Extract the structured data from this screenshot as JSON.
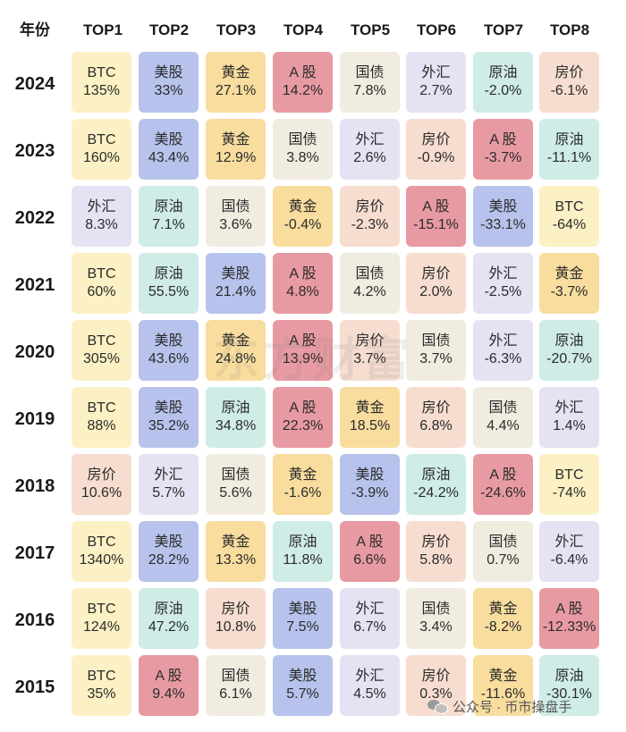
{
  "header": [
    "年份",
    "TOP1",
    "TOP2",
    "TOP3",
    "TOP4",
    "TOP5",
    "TOP6",
    "TOP7",
    "TOP8"
  ],
  "rows": [
    {
      "year": "2024",
      "cells": [
        {
          "name": "BTC",
          "value": "135%",
          "cat": "btc"
        },
        {
          "name": "美股",
          "value": "33%",
          "cat": "us"
        },
        {
          "name": "黄金",
          "value": "27.1%",
          "cat": "gold"
        },
        {
          "name": "A 股",
          "value": "14.2%",
          "cat": "a"
        },
        {
          "name": "国债",
          "value": "7.8%",
          "cat": "bond"
        },
        {
          "name": "外汇",
          "value": "2.7%",
          "cat": "fx"
        },
        {
          "name": "原油",
          "value": "-2.0%",
          "cat": "oil"
        },
        {
          "name": "房价",
          "value": "-6.1%",
          "cat": "house"
        }
      ]
    },
    {
      "year": "2023",
      "cells": [
        {
          "name": "BTC",
          "value": "160%",
          "cat": "btc"
        },
        {
          "name": "美股",
          "value": "43.4%",
          "cat": "us"
        },
        {
          "name": "黄金",
          "value": "12.9%",
          "cat": "gold"
        },
        {
          "name": "国债",
          "value": "3.8%",
          "cat": "bond"
        },
        {
          "name": "外汇",
          "value": "2.6%",
          "cat": "fx"
        },
        {
          "name": "房价",
          "value": "-0.9%",
          "cat": "house"
        },
        {
          "name": "A 股",
          "value": "-3.7%",
          "cat": "a"
        },
        {
          "name": "原油",
          "value": "-11.1%",
          "cat": "oil"
        }
      ]
    },
    {
      "year": "2022",
      "cells": [
        {
          "name": "外汇",
          "value": "8.3%",
          "cat": "fx"
        },
        {
          "name": "原油",
          "value": "7.1%",
          "cat": "oil"
        },
        {
          "name": "国债",
          "value": "3.6%",
          "cat": "bond"
        },
        {
          "name": "黄金",
          "value": "-0.4%",
          "cat": "gold"
        },
        {
          "name": "房价",
          "value": "-2.3%",
          "cat": "house"
        },
        {
          "name": "A 股",
          "value": "-15.1%",
          "cat": "a"
        },
        {
          "name": "美股",
          "value": "-33.1%",
          "cat": "us"
        },
        {
          "name": "BTC",
          "value": "-64%",
          "cat": "btc"
        }
      ]
    },
    {
      "year": "2021",
      "cells": [
        {
          "name": "BTC",
          "value": "60%",
          "cat": "btc"
        },
        {
          "name": "原油",
          "value": "55.5%",
          "cat": "oil"
        },
        {
          "name": "美股",
          "value": "21.4%",
          "cat": "us"
        },
        {
          "name": "A 股",
          "value": "4.8%",
          "cat": "a"
        },
        {
          "name": "国债",
          "value": "4.2%",
          "cat": "bond"
        },
        {
          "name": "房价",
          "value": "2.0%",
          "cat": "house"
        },
        {
          "name": "外汇",
          "value": "-2.5%",
          "cat": "fx"
        },
        {
          "name": "黄金",
          "value": "-3.7%",
          "cat": "gold"
        }
      ]
    },
    {
      "year": "2020",
      "cells": [
        {
          "name": "BTC",
          "value": "305%",
          "cat": "btc"
        },
        {
          "name": "美股",
          "value": "43.6%",
          "cat": "us"
        },
        {
          "name": "黄金",
          "value": "24.8%",
          "cat": "gold"
        },
        {
          "name": "A 股",
          "value": "13.9%",
          "cat": "a"
        },
        {
          "name": "房价",
          "value": "3.7%",
          "cat": "house"
        },
        {
          "name": "国债",
          "value": "3.7%",
          "cat": "bond"
        },
        {
          "name": "外汇",
          "value": "-6.3%",
          "cat": "fx"
        },
        {
          "name": "原油",
          "value": "-20.7%",
          "cat": "oil"
        }
      ]
    },
    {
      "year": "2019",
      "cells": [
        {
          "name": "BTC",
          "value": "88%",
          "cat": "btc"
        },
        {
          "name": "美股",
          "value": "35.2%",
          "cat": "us"
        },
        {
          "name": "原油",
          "value": "34.8%",
          "cat": "oil"
        },
        {
          "name": "A 股",
          "value": "22.3%",
          "cat": "a"
        },
        {
          "name": "黄金",
          "value": "18.5%",
          "cat": "gold"
        },
        {
          "name": "房价",
          "value": "6.8%",
          "cat": "house"
        },
        {
          "name": "国债",
          "value": "4.4%",
          "cat": "bond"
        },
        {
          "name": "外汇",
          "value": "1.4%",
          "cat": "fx"
        }
      ]
    },
    {
      "year": "2018",
      "cells": [
        {
          "name": "房价",
          "value": "10.6%",
          "cat": "house"
        },
        {
          "name": "外汇",
          "value": "5.7%",
          "cat": "fx"
        },
        {
          "name": "国债",
          "value": "5.6%",
          "cat": "bond"
        },
        {
          "name": "黄金",
          "value": "-1.6%",
          "cat": "gold"
        },
        {
          "name": "美股",
          "value": "-3.9%",
          "cat": "us"
        },
        {
          "name": "原油",
          "value": "-24.2%",
          "cat": "oil"
        },
        {
          "name": "A 股",
          "value": "-24.6%",
          "cat": "a"
        },
        {
          "name": "BTC",
          "value": "-74%",
          "cat": "btc"
        }
      ]
    },
    {
      "year": "2017",
      "cells": [
        {
          "name": "BTC",
          "value": "1340%",
          "cat": "btc"
        },
        {
          "name": "美股",
          "value": "28.2%",
          "cat": "us"
        },
        {
          "name": "黄金",
          "value": "13.3%",
          "cat": "gold"
        },
        {
          "name": "原油",
          "value": "11.8%",
          "cat": "oil"
        },
        {
          "name": "A 股",
          "value": "6.6%",
          "cat": "a"
        },
        {
          "name": "房价",
          "value": "5.8%",
          "cat": "house"
        },
        {
          "name": "国债",
          "value": "0.7%",
          "cat": "bond"
        },
        {
          "name": "外汇",
          "value": "-6.4%",
          "cat": "fx"
        }
      ]
    },
    {
      "year": "2016",
      "cells": [
        {
          "name": "BTC",
          "value": "124%",
          "cat": "btc"
        },
        {
          "name": "原油",
          "value": "47.2%",
          "cat": "oil"
        },
        {
          "name": "房价",
          "value": "10.8%",
          "cat": "house"
        },
        {
          "name": "美股",
          "value": "7.5%",
          "cat": "us"
        },
        {
          "name": "外汇",
          "value": "6.7%",
          "cat": "fx"
        },
        {
          "name": "国债",
          "value": "3.4%",
          "cat": "bond"
        },
        {
          "name": "黄金",
          "value": "-8.2%",
          "cat": "gold"
        },
        {
          "name": "A 股",
          "value": "-12.33%",
          "cat": "a"
        }
      ]
    },
    {
      "year": "2015",
      "cells": [
        {
          "name": "BTC",
          "value": "35%",
          "cat": "btc"
        },
        {
          "name": "A 股",
          "value": "9.4%",
          "cat": "a"
        },
        {
          "name": "国债",
          "value": "6.1%",
          "cat": "bond"
        },
        {
          "name": "美股",
          "value": "5.7%",
          "cat": "us"
        },
        {
          "name": "外汇",
          "value": "4.5%",
          "cat": "fx"
        },
        {
          "name": "房价",
          "value": "0.3%",
          "cat": "house"
        },
        {
          "name": "黄金",
          "value": "-11.6%",
          "cat": "gold"
        },
        {
          "name": "原油",
          "value": "-30.1%",
          "cat": "oil"
        }
      ]
    }
  ],
  "watermark": "东方财富",
  "footer": {
    "icon": "wechat-icon",
    "text": "公众号 · 币市操盘手"
  },
  "colors": {
    "btc": "#fbf1c4",
    "us": "#b7c3ec",
    "gold": "#f8dd9e",
    "a": "#e89aa2",
    "bond": "#f1ece0",
    "fx": "#e6e1f3",
    "oil": "#cfece6",
    "house": "#f6ddcf"
  }
}
